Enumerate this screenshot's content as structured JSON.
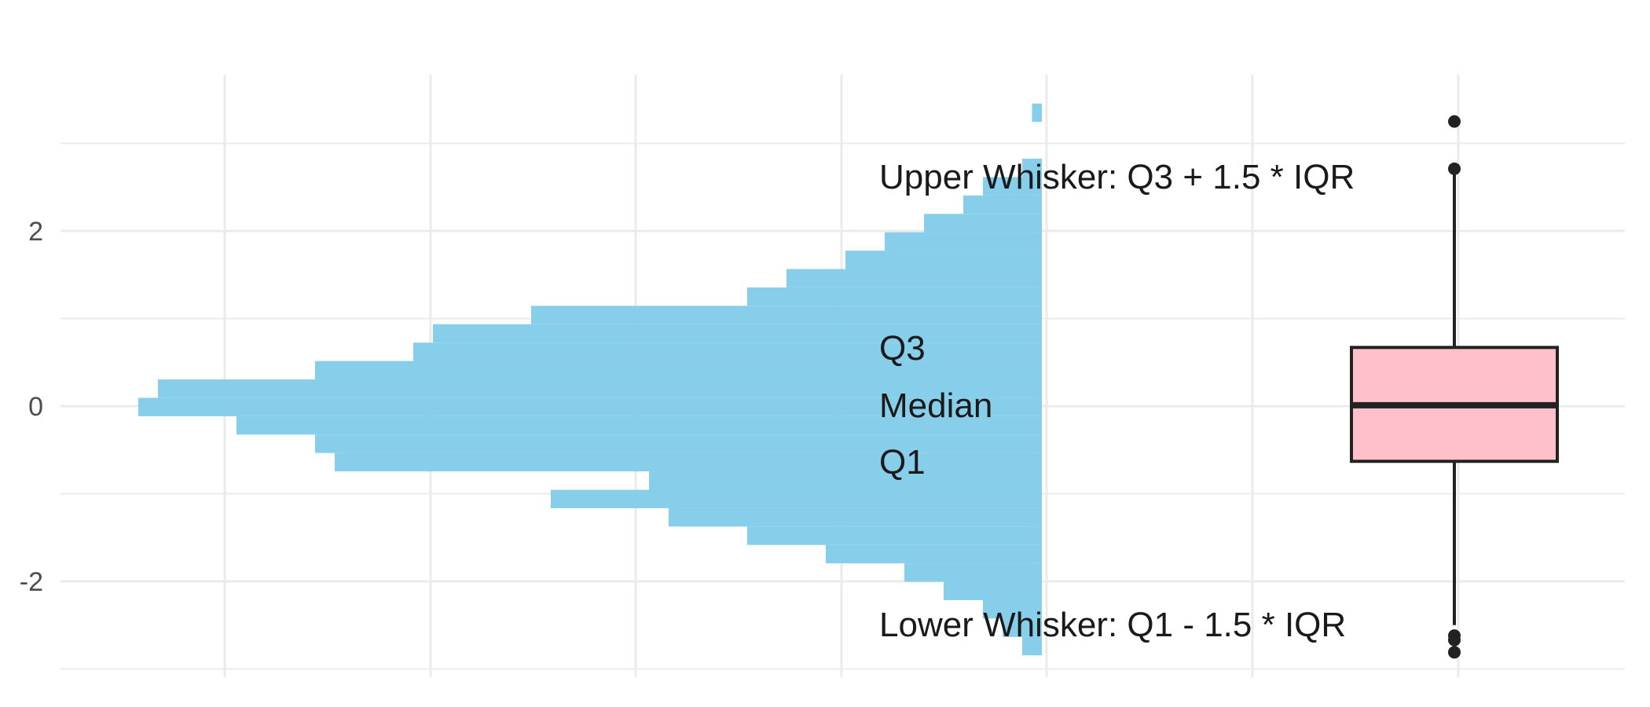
{
  "chart_data": {
    "type": "histogram-boxplot",
    "title": "",
    "xlabel": "",
    "ylabel": "",
    "ylim": [
      -3.05,
      3.05
    ],
    "y_ticks": [
      -2,
      0,
      2
    ],
    "y_tick_labels": [
      "-2",
      "0",
      "2"
    ],
    "grid": true,
    "histogram": {
      "color": "#87CEEB",
      "bin_width": 0.21,
      "bins": [
        {
          "y": -2.74,
          "count": 1
        },
        {
          "y": -2.53,
          "count": 2
        },
        {
          "y": -2.32,
          "count": 3
        },
        {
          "y": -2.11,
          "count": 5
        },
        {
          "y": -1.9,
          "count": 7
        },
        {
          "y": -1.69,
          "count": 11
        },
        {
          "y": -1.48,
          "count": 15
        },
        {
          "y": -1.27,
          "count": 19
        },
        {
          "y": -1.06,
          "count": 25
        },
        {
          "y": -0.85,
          "count": 20
        },
        {
          "y": -0.64,
          "count": 36
        },
        {
          "y": -0.43,
          "count": 37
        },
        {
          "y": -0.22,
          "count": 41
        },
        {
          "y": -0.01,
          "count": 46
        },
        {
          "y": 0.2,
          "count": 45
        },
        {
          "y": 0.41,
          "count": 37
        },
        {
          "y": 0.62,
          "count": 32
        },
        {
          "y": 0.83,
          "count": 31
        },
        {
          "y": 1.04,
          "count": 26
        },
        {
          "y": 1.25,
          "count": 15
        },
        {
          "y": 1.46,
          "count": 13
        },
        {
          "y": 1.67,
          "count": 10
        },
        {
          "y": 1.88,
          "count": 8
        },
        {
          "y": 2.09,
          "count": 6
        },
        {
          "y": 2.3,
          "count": 4
        },
        {
          "y": 2.51,
          "count": 3
        },
        {
          "y": 2.72,
          "count": 1
        },
        {
          "y": 3.35,
          "count": 0.5
        }
      ]
    },
    "boxplot": {
      "fill": "#FFC0CB",
      "stroke": "#222222",
      "lower_whisker": -2.5,
      "q1": -0.63,
      "median": 0.01,
      "q3": 0.67,
      "upper_whisker": 2.68,
      "outliers": [
        3.25,
        2.71,
        -2.62,
        -2.67,
        -2.81
      ]
    },
    "annotations": {
      "upper_whisker": "Upper Whisker: Q3 + 1.5 * IQR",
      "q3": "Q3",
      "median": "Median",
      "q1": "Q1",
      "lower_whisker": "Lower Whisker: Q1 - 1.5 * IQR"
    }
  }
}
